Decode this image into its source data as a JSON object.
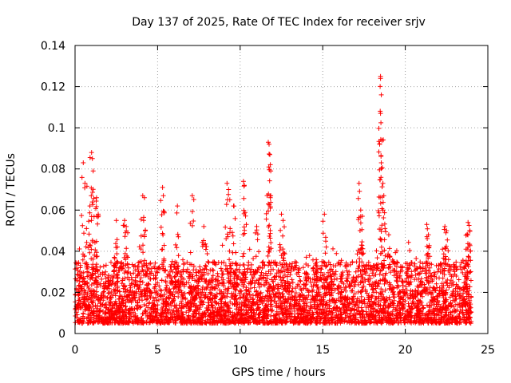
{
  "chart_data": {
    "type": "scatter",
    "title": "Day 137 of 2025, Rate Of TEC Index for receiver srjv",
    "xlabel": "GPS time / hours",
    "ylabel": "ROTI / TECUs",
    "xlim": [
      0,
      25
    ],
    "ylim": [
      0,
      0.14
    ],
    "x_ticks": [
      0,
      5,
      10,
      15,
      20,
      25
    ],
    "y_ticks": [
      0,
      0.02,
      0.04,
      0.06,
      0.08,
      0.1,
      0.12,
      0.14
    ],
    "x_tick_labels": [
      "0",
      "5",
      "10",
      "15",
      "20",
      "25"
    ],
    "y_tick_labels": [
      "0",
      "0.02",
      "0.04",
      "0.06",
      "0.08",
      "0.1",
      "0.12",
      "0.14"
    ],
    "grid": true,
    "marker": "plus",
    "color": "#ff0000",
    "data_range_x": [
      0,
      24
    ],
    "baseline_band": [
      0.005,
      0.035
    ],
    "spikes": [
      {
        "x": 0.5,
        "y": 0.083
      },
      {
        "x": 0.6,
        "y": 0.073
      },
      {
        "x": 0.9,
        "y": 0.062
      },
      {
        "x": 1.0,
        "y": 0.088
      },
      {
        "x": 1.05,
        "y": 0.085
      },
      {
        "x": 1.1,
        "y": 0.079
      },
      {
        "x": 1.3,
        "y": 0.066
      },
      {
        "x": 1.4,
        "y": 0.058
      },
      {
        "x": 2.5,
        "y": 0.055
      },
      {
        "x": 3.0,
        "y": 0.055
      },
      {
        "x": 3.1,
        "y": 0.052
      },
      {
        "x": 4.1,
        "y": 0.067
      },
      {
        "x": 4.2,
        "y": 0.066
      },
      {
        "x": 5.3,
        "y": 0.071
      },
      {
        "x": 5.35,
        "y": 0.067
      },
      {
        "x": 6.2,
        "y": 0.062
      },
      {
        "x": 7.1,
        "y": 0.067
      },
      {
        "x": 7.8,
        "y": 0.052
      },
      {
        "x": 9.2,
        "y": 0.073
      },
      {
        "x": 9.3,
        "y": 0.07
      },
      {
        "x": 9.6,
        "y": 0.062
      },
      {
        "x": 10.2,
        "y": 0.074
      },
      {
        "x": 10.25,
        "y": 0.072
      },
      {
        "x": 11.0,
        "y": 0.052
      },
      {
        "x": 11.7,
        "y": 0.093
      },
      {
        "x": 11.75,
        "y": 0.092
      },
      {
        "x": 11.8,
        "y": 0.087
      },
      {
        "x": 11.85,
        "y": 0.079
      },
      {
        "x": 11.7,
        "y": 0.063
      },
      {
        "x": 12.5,
        "y": 0.058
      },
      {
        "x": 12.6,
        "y": 0.055
      },
      {
        "x": 15.1,
        "y": 0.058
      },
      {
        "x": 17.2,
        "y": 0.073
      },
      {
        "x": 17.3,
        "y": 0.06
      },
      {
        "x": 17.4,
        "y": 0.057
      },
      {
        "x": 18.5,
        "y": 0.125
      },
      {
        "x": 18.5,
        "y": 0.124
      },
      {
        "x": 18.55,
        "y": 0.116
      },
      {
        "x": 18.5,
        "y": 0.107
      },
      {
        "x": 18.45,
        "y": 0.092
      },
      {
        "x": 18.55,
        "y": 0.083
      },
      {
        "x": 18.7,
        "y": 0.067
      },
      {
        "x": 18.65,
        "y": 0.06
      },
      {
        "x": 19.0,
        "y": 0.048
      },
      {
        "x": 21.3,
        "y": 0.053
      },
      {
        "x": 21.4,
        "y": 0.048
      },
      {
        "x": 22.4,
        "y": 0.052
      },
      {
        "x": 22.5,
        "y": 0.05
      },
      {
        "x": 23.8,
        "y": 0.054
      },
      {
        "x": 23.9,
        "y": 0.05
      },
      {
        "x": 23.8,
        "y": 0.042
      }
    ]
  }
}
